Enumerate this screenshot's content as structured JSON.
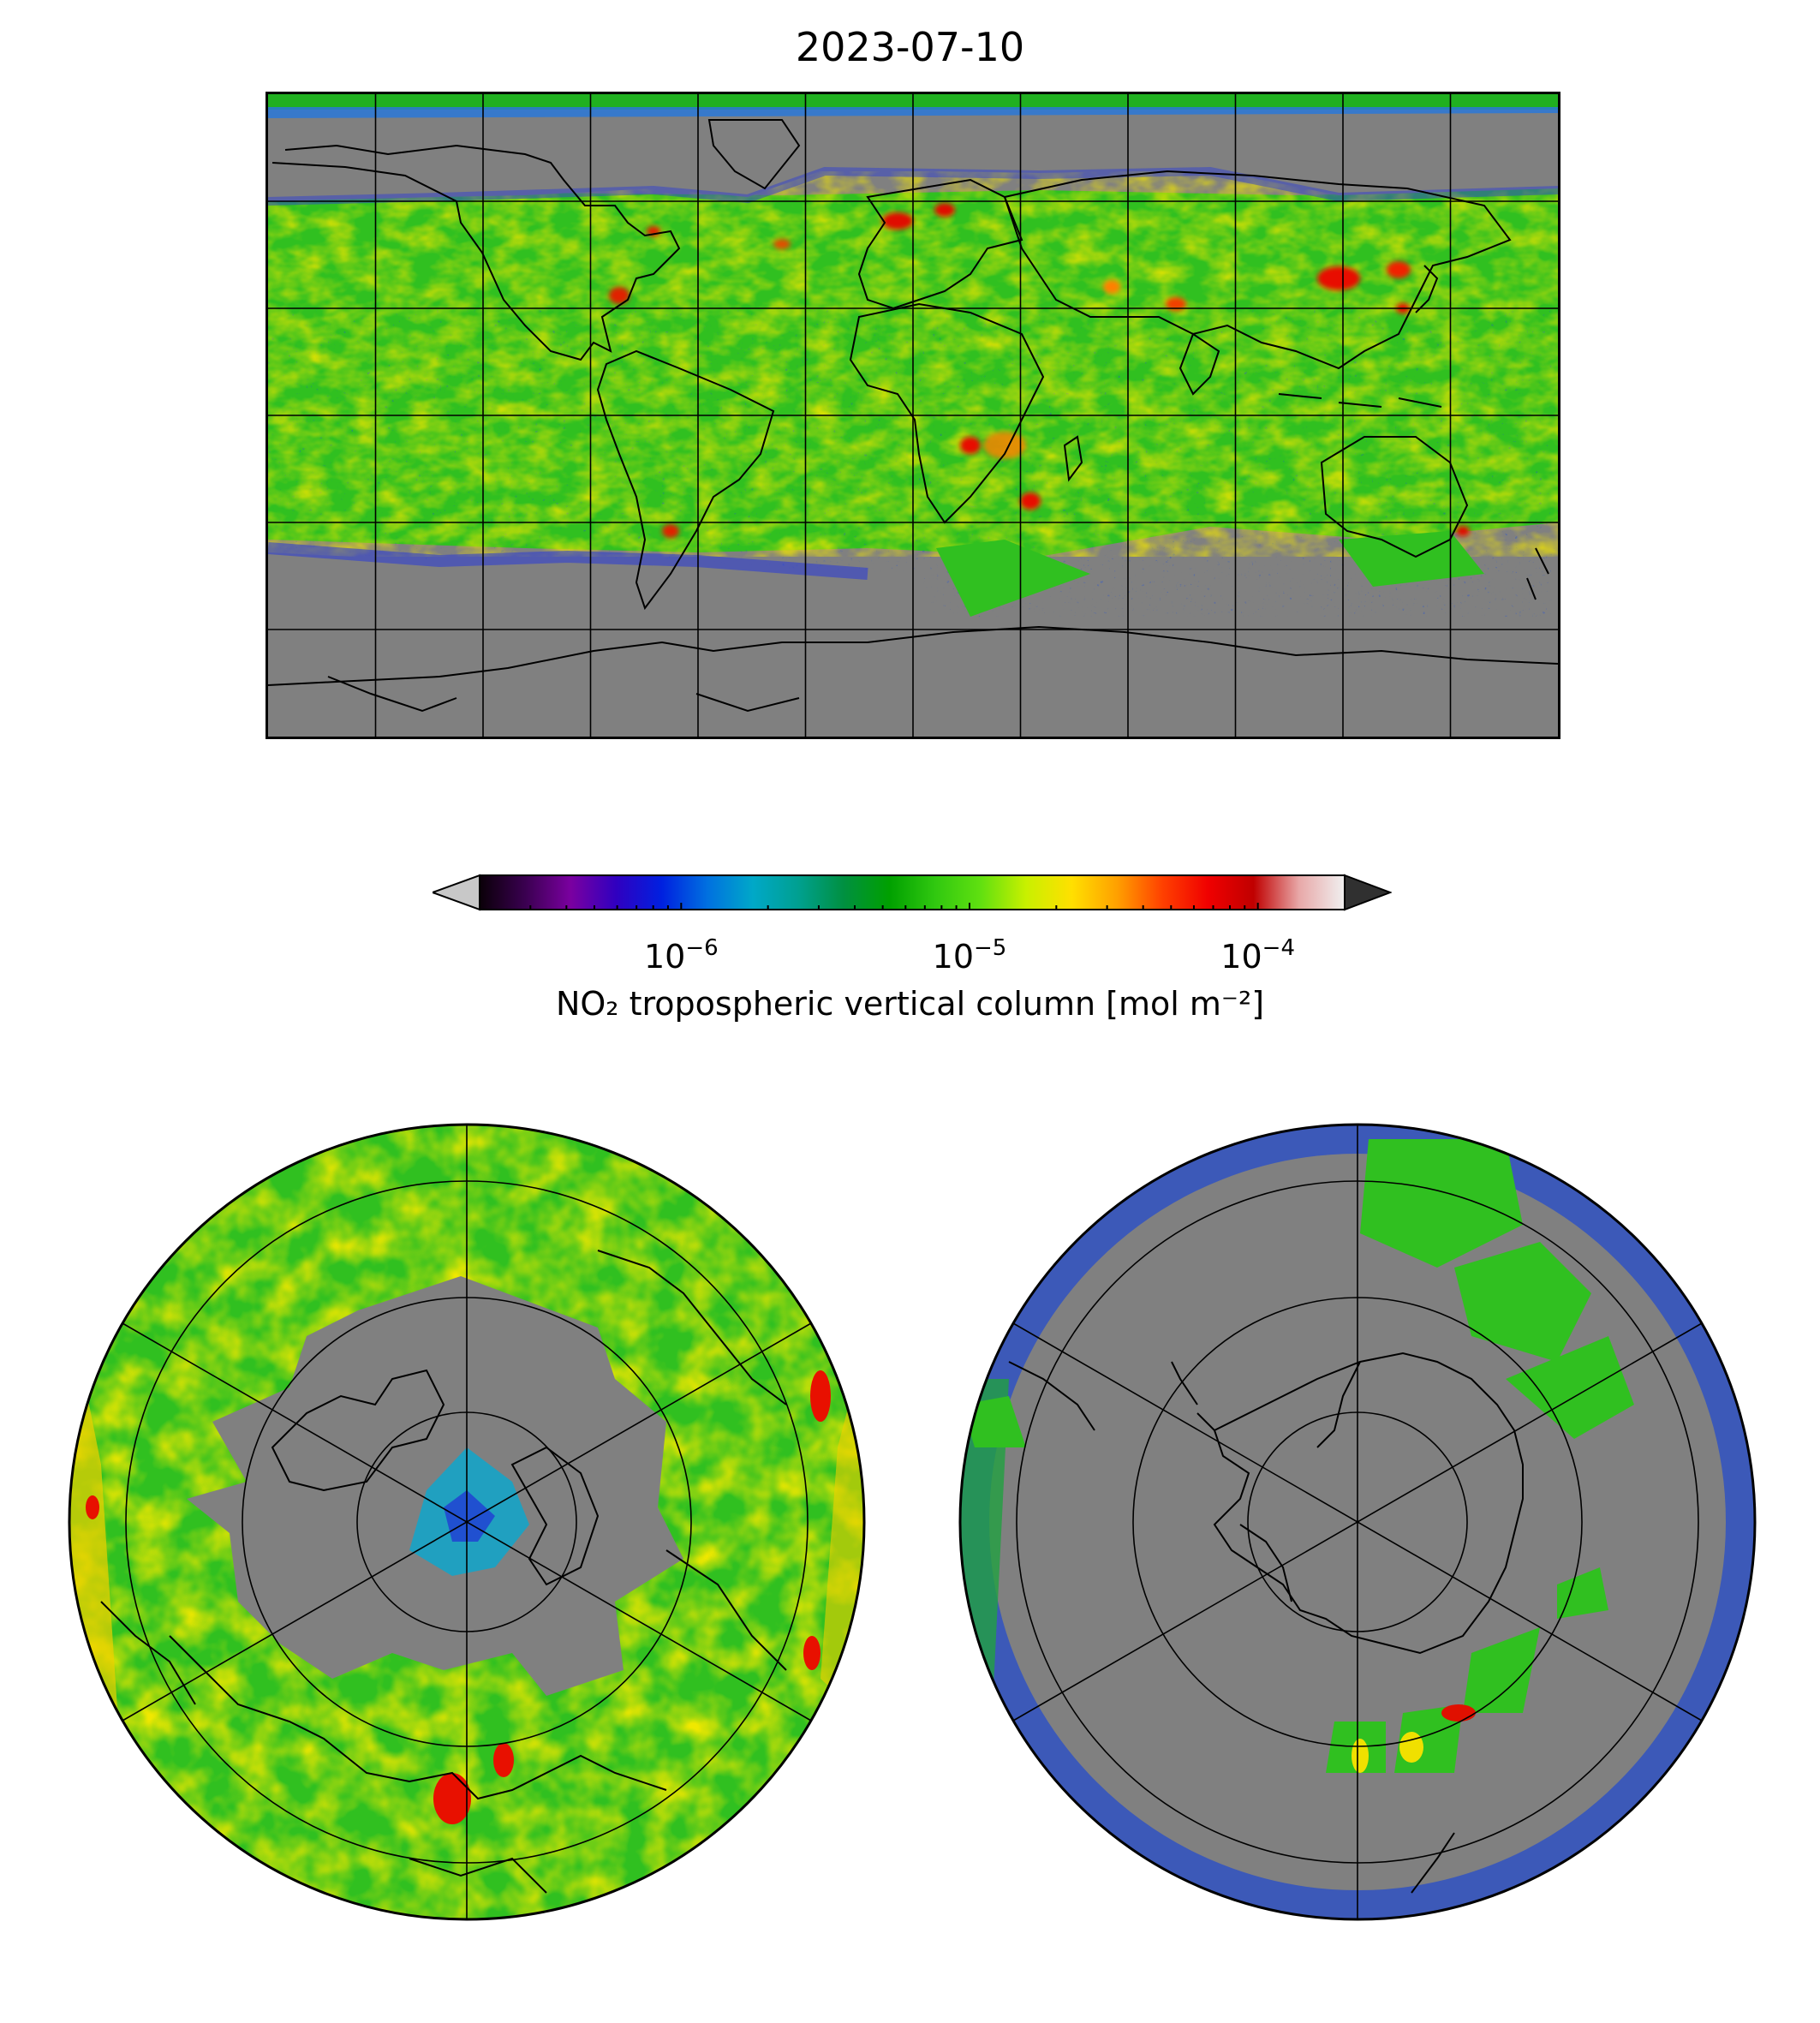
{
  "title": "2023-07-10",
  "colorbar": {
    "label": "NO₂ tropospheric vertical column [mol m⁻²]",
    "scale": "log",
    "range": [
      2e-07,
      0.0002
    ],
    "ticks": [
      {
        "base": "10",
        "exp": "−6",
        "value": 1e-06
      },
      {
        "base": "10",
        "exp": "−5",
        "value": 1e-05
      },
      {
        "base": "10",
        "exp": "−4",
        "value": 0.0001
      }
    ],
    "colors": [
      "#0a0008",
      "#3a0050",
      "#7a00a0",
      "#3000c0",
      "#0020e0",
      "#0070e0",
      "#00a8c8",
      "#00a090",
      "#009040",
      "#00a000",
      "#30c810",
      "#60e010",
      "#c8f000",
      "#ffe000",
      "#ffa000",
      "#ff4000",
      "#f00000",
      "#c00000",
      "#e8a8a8",
      "#f0f0f0"
    ],
    "under_color": "#c8c8c8",
    "over_color": "#303030"
  },
  "maps": {
    "global": {
      "projection": "PlateCarree",
      "no_data_color": "#808080"
    },
    "north_polar": {
      "projection": "NorthPolarStereo"
    },
    "south_polar": {
      "projection": "SouthPolarStereo"
    }
  }
}
